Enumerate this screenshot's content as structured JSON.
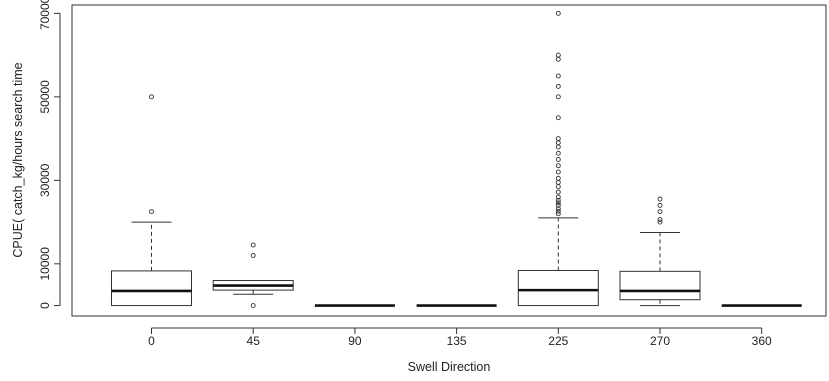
{
  "chart_data": {
    "type": "boxplot",
    "title": "",
    "xlabel": "Swell Direction",
    "ylabel": "CPUE( catch_kg/hours search time",
    "categories": [
      "0",
      "45",
      "90",
      "135",
      "225",
      "270",
      "360"
    ],
    "ylim": [
      -2500,
      72000
    ],
    "yticks": [
      0,
      10000,
      30000,
      50000,
      70000
    ],
    "grid": false,
    "legend": "none",
    "boxes": [
      {
        "category": "0",
        "whisker_low": 0,
        "q1": 0,
        "median": 3500,
        "q3": 8300,
        "whisker_high": 20000,
        "outliers": [
          22500,
          50000
        ]
      },
      {
        "category": "45",
        "whisker_low": 2700,
        "q1": 3700,
        "median": 4800,
        "q3": 6000,
        "whisker_high": 6000,
        "outliers": [
          12000,
          14500,
          0
        ]
      },
      {
        "category": "90",
        "whisker_low": 0,
        "q1": 0,
        "median": 0,
        "q3": 0,
        "whisker_high": 0,
        "outliers": []
      },
      {
        "category": "135",
        "whisker_low": 0,
        "q1": 0,
        "median": 0,
        "q3": 0,
        "whisker_high": 0,
        "outliers": []
      },
      {
        "category": "225",
        "whisker_low": 0,
        "q1": 0,
        "median": 3700,
        "q3": 8400,
        "whisker_high": 21000,
        "outliers": [
          22000,
          22600,
          23200,
          24000,
          24600,
          25200,
          26000,
          27200,
          28500,
          29500,
          30500,
          32000,
          33500,
          35000,
          36500,
          38000,
          39000,
          40000,
          45000,
          50000,
          52500,
          55000,
          59000,
          60000,
          70000
        ]
      },
      {
        "category": "270",
        "whisker_low": 0,
        "q1": 1400,
        "median": 3500,
        "q3": 8200,
        "whisker_high": 17500,
        "outliers": [
          20000,
          20600,
          22500,
          24000,
          25500
        ]
      },
      {
        "category": "360",
        "whisker_low": 0,
        "q1": 0,
        "median": 0,
        "q3": 0,
        "whisker_high": 0,
        "outliers": []
      }
    ]
  }
}
